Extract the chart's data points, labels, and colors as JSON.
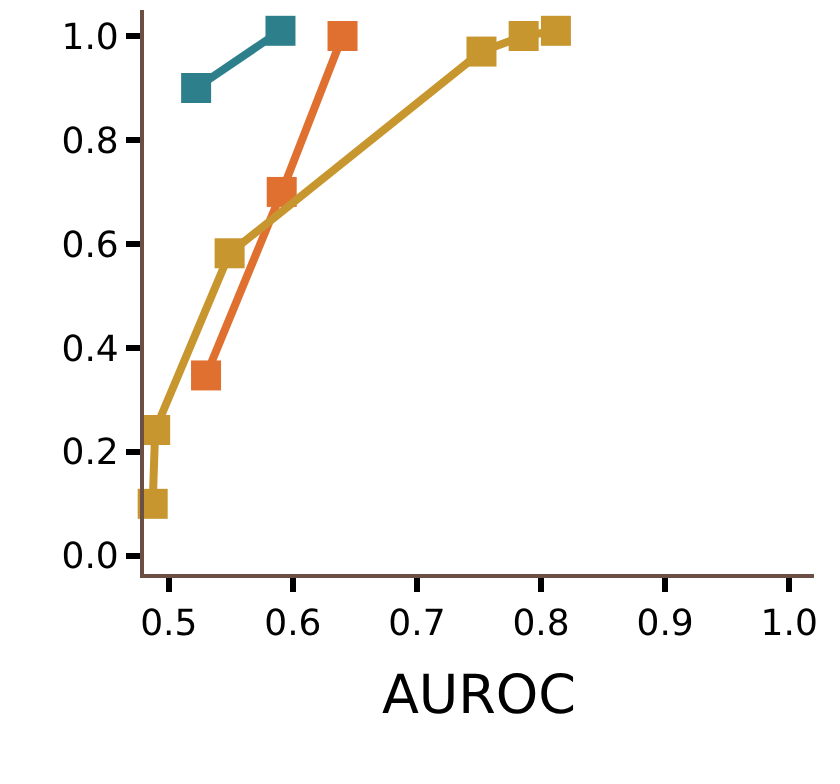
{
  "chart_data": {
    "type": "line",
    "xlabel": "AUROC",
    "xlim": [
      0.48,
      1.02
    ],
    "xticks": [
      {
        "value": 0.5,
        "label": "0.5"
      },
      {
        "value": 0.6,
        "label": "0.6"
      },
      {
        "value": 0.7,
        "label": "0.7"
      },
      {
        "value": 0.8,
        "label": "0.8"
      },
      {
        "value": 0.9,
        "label": "0.9"
      },
      {
        "value": 1.0,
        "label": "1.0"
      }
    ],
    "ylim": [
      -0.035,
      1.05
    ],
    "yticks": [
      {
        "value": 0,
        "label": "0.0"
      },
      {
        "value": 0.2,
        "label": "0.2"
      },
      {
        "value": 0.4,
        "label": "0.4"
      },
      {
        "value": 0.6,
        "label": "0.6"
      },
      {
        "value": 0.8,
        "label": "0.8"
      },
      {
        "value": 1.0,
        "label": "1.0"
      }
    ],
    "grid": false,
    "marker": "square",
    "line_style": "solid",
    "series": [
      {
        "color": "#2e7f8c",
        "x": [
          0.522,
          0.59
        ],
        "values": [
          0.9,
          1.01
        ]
      },
      {
        "color": "#e07030",
        "x": [
          0.53,
          0.591,
          0.64
        ],
        "values": [
          0.347,
          0.7,
          1.0
        ]
      },
      {
        "color": "#c8962e",
        "x": [
          0.487,
          0.489,
          0.549,
          0.752,
          0.786,
          0.812
        ],
        "values": [
          0.1,
          0.242,
          0.582,
          0.97,
          1.0,
          1.01
        ]
      }
    ]
  }
}
